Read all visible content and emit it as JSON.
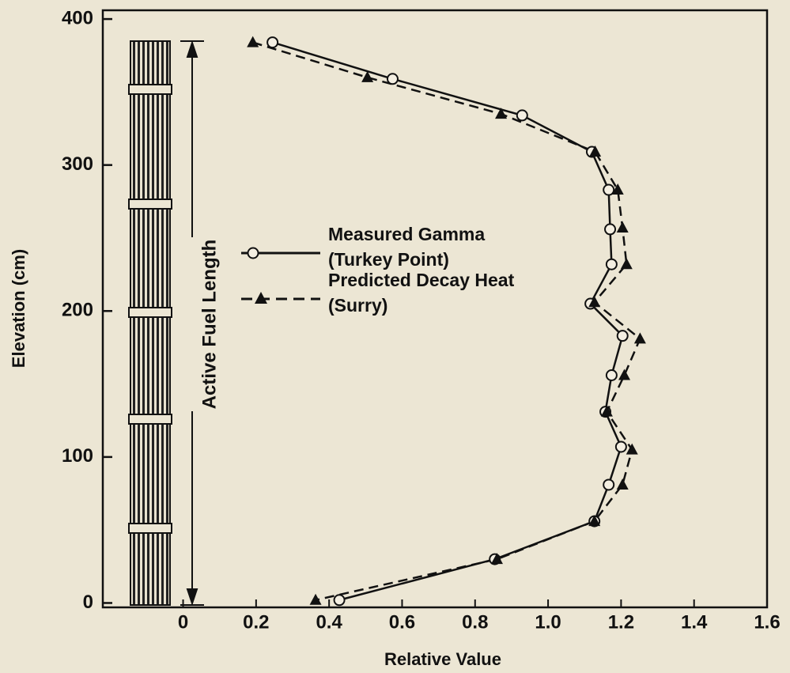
{
  "chart_data": {
    "type": "line",
    "xlabel": "Relative Value",
    "ylabel": "Elevation (cm)",
    "annotation": "Active Fuel Length",
    "xlim": [
      -0.22,
      1.6
    ],
    "xticks": [
      0,
      0.2,
      0.4,
      0.6,
      0.8,
      {
        "value": 1,
        "label": "1.0"
      },
      1.2,
      1.4,
      1.6
    ],
    "ylim": [
      -3,
      406
    ],
    "yticks": [
      0,
      100,
      200,
      300,
      400
    ],
    "series": [
      {
        "name": "Measured Gamma",
        "source": "(Turkey Point)",
        "color": "#111111",
        "marker": "circle",
        "dash": false,
        "x": [
          0.245,
          0.574,
          0.929,
          1.12,
          1.166,
          1.17,
          1.174,
          1.116,
          1.204,
          1.174,
          1.157,
          1.2,
          1.166,
          1.127,
          0.854,
          0.428
        ],
        "values": [
          384,
          359,
          334,
          309,
          283,
          256,
          232,
          205,
          183,
          156,
          131,
          107,
          81,
          56,
          30,
          2
        ]
      },
      {
        "name": "Predicted Decay Heat",
        "source": "(Surry)",
        "color": "#111111",
        "marker": "triangle",
        "dash": true,
        "x": [
          0.191,
          0.505,
          0.871,
          1.129,
          1.191,
          1.204,
          1.215,
          1.127,
          1.252,
          1.209,
          1.161,
          1.23,
          1.204,
          1.127,
          0.86,
          0.363
        ],
        "values": [
          384,
          360,
          335,
          309,
          283,
          257,
          232,
          206,
          181,
          156,
          131,
          105,
          81,
          56,
          30,
          2
        ]
      }
    ]
  }
}
